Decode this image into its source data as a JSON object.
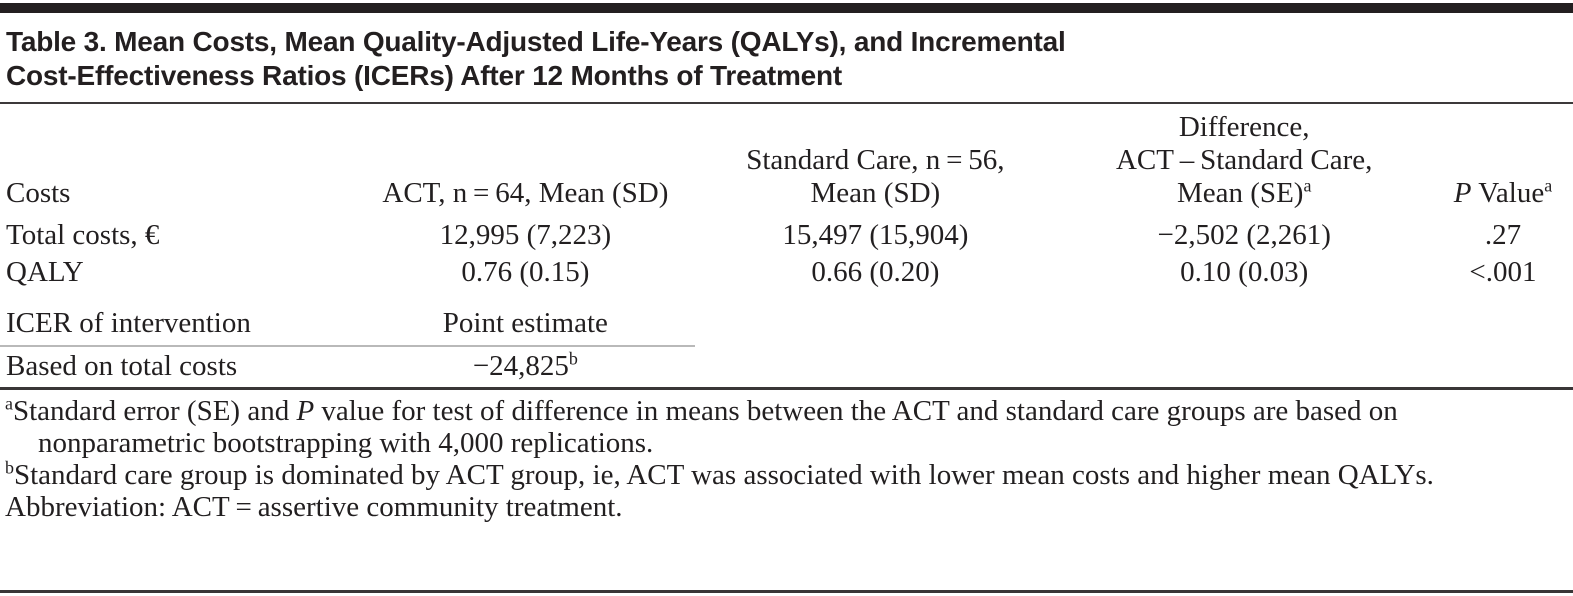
{
  "title": {
    "line1": "Table 3. Mean Costs, Mean Quality-Adjusted Life-Years (QALYs), and Incremental",
    "line2": "Cost-Effectiveness Ratios (ICERs) After 12 Months of Treatment"
  },
  "chart_data": {
    "type": "table",
    "title": "Table 3. Mean Costs, Mean Quality-Adjusted Life-Years (QALYs), and Incremental Cost-Effectiveness Ratios (ICERs) After 12 Months of Treatment",
    "columns": [
      "Costs",
      "ACT, n = 64, Mean (SD)",
      "Standard Care, n = 56, Mean (SD)",
      "Difference, ACT – Standard Care, Mean (SE)ᵃ",
      "P Valueᵃ"
    ],
    "rows": [
      [
        "Total costs, €",
        "12,995 (7,223)",
        "15,497 (15,904)",
        "−2,502 (2,261)",
        ".27"
      ],
      [
        "QALY",
        "0.76 (0.15)",
        "0.66 (0.20)",
        "0.10 (0.03)",
        "<.001"
      ],
      [
        "ICER of intervention",
        "Point estimate",
        "",
        "",
        ""
      ],
      [
        "Based on total costs",
        "−24,825ᵇ",
        "",
        "",
        ""
      ]
    ]
  },
  "header": {
    "costs": "Costs",
    "act": "ACT, n = 64, Mean (SD)",
    "standard_line1": "Standard Care, n = 56,",
    "standard_line2": "Mean (SD)",
    "diff_line1": "Difference,",
    "diff_line2": "ACT – Standard Care,",
    "diff_line3": "Mean (SE)",
    "diff_sup": "a",
    "p_italic": "P",
    "p_rest": " Value",
    "p_sup": "a"
  },
  "rows": [
    {
      "label": "Total costs, €",
      "act": "12,995 (7,223)",
      "standard": "15,497 (15,904)",
      "difference": "−2,502 (2,261)",
      "p": ".27"
    },
    {
      "label": "QALY",
      "act": "0.76 (0.15)",
      "standard": "0.66 (0.20)",
      "difference": "0.10 (0.03)",
      "p": "<.001"
    }
  ],
  "icer": {
    "section_label": "ICER of intervention",
    "section_value": "Point estimate",
    "row_label": "Based on total costs",
    "row_value": "−24,825",
    "row_value_sup": "b"
  },
  "footnotes": {
    "a_sup": "a",
    "a_part1": "Standard error (SE) and ",
    "a_italic": "P",
    "a_part2": " value for test of difference in means between the ACT and standard care groups are based on nonparametric bootstrapping with 4,000 replications.",
    "b_sup": "b",
    "b_text": "Standard care group is dominated by ACT group, ie, ACT was associated with lower mean costs and higher mean QALYs.",
    "abbreviation": "Abbreviation: ACT = assertive community treatment."
  }
}
